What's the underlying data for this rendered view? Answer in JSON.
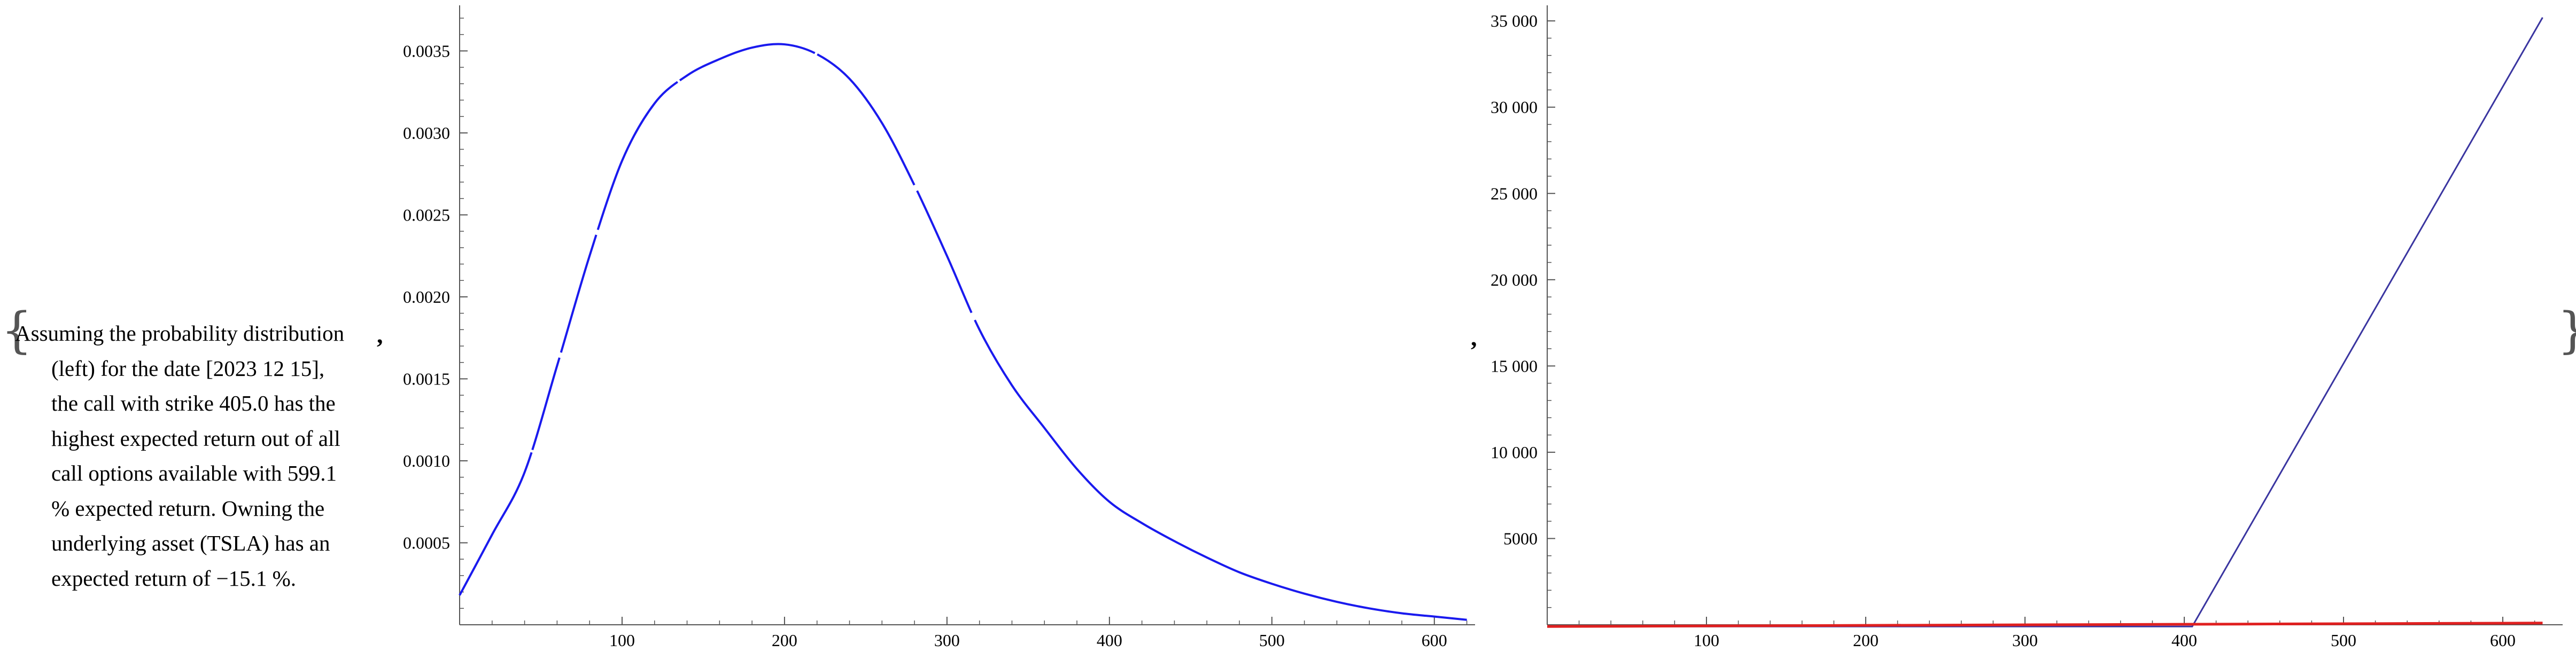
{
  "message_lines": [
    "Assuming the probability distribution",
    "(left) for the date [2023 12 15],",
    "the call with strike 405.0 has the",
    "highest expected return out of all",
    "call options available with 599.1",
    "% expected return. Owning the",
    "underlying asset (TSLA) has an",
    "expected return of −15.1 %."
  ],
  "colors": {
    "density": "#1a1aee",
    "call_payoff": "#3a35a0",
    "asset_payoff": "#e02020",
    "axis": "#555555"
  },
  "chart_data": [
    {
      "type": "line",
      "title": "",
      "xlabel": "",
      "ylabel": "",
      "xlim": [
        0,
        630
      ],
      "ylim": [
        0,
        0.00355
      ],
      "x_ticks": [
        100,
        200,
        300,
        400,
        500,
        600
      ],
      "x_tick_labels": [
        "100",
        "200",
        "300",
        "400",
        "500",
        "600"
      ],
      "y_ticks": [
        0.0005,
        0.001,
        0.0015,
        0.002,
        0.0025,
        0.003,
        0.0035
      ],
      "y_tick_labels": [
        "0.0005",
        "0.0010",
        "0.0015",
        "0.0020",
        "0.0025",
        "0.0030",
        "0.0035"
      ],
      "grid": false,
      "series": [
        {
          "x": [
            0,
            20,
            40,
            60,
            80,
            100,
            120,
            140,
            160,
            180,
            200,
            220,
            240,
            260,
            280,
            300,
            320,
            340,
            360,
            380,
            400,
            420,
            440,
            460,
            480,
            500,
            520,
            540,
            560,
            580,
            600,
            620
          ],
          "y": [
            0.00018,
            0.00055,
            0.00093,
            0.00158,
            0.00225,
            0.00283,
            0.00318,
            0.00335,
            0.00345,
            0.00352,
            0.00354,
            0.00348,
            0.00333,
            0.00306,
            0.00268,
            0.00225,
            0.0018,
            0.00146,
            0.0012,
            0.00095,
            0.00075,
            0.00062,
            0.00051,
            0.00041,
            0.00032,
            0.00025,
            0.00019,
            0.00014,
            0.0001,
            7e-05,
            5e-05,
            3e-05
          ]
        }
      ]
    },
    {
      "type": "line",
      "title": "",
      "xlabel": "",
      "ylabel": "",
      "xlim": [
        0,
        630
      ],
      "ylim": [
        0,
        35500
      ],
      "x_ticks": [
        100,
        200,
        300,
        400,
        500,
        600
      ],
      "x_tick_labels": [
        "100",
        "200",
        "300",
        "400",
        "500",
        "600"
      ],
      "y_ticks": [
        5000,
        10000,
        15000,
        20000,
        25000,
        30000,
        35000
      ],
      "y_tick_labels": [
        "5000",
        "10 000",
        "15 000",
        "20 000",
        "25 000",
        "30 000",
        "35 000"
      ],
      "grid": false,
      "series": [
        {
          "x": [
            0,
            405,
            625
          ],
          "y": [
            -100,
            -100,
            35200
          ]
        },
        {
          "x": [
            0,
            625
          ],
          "y": [
            -100,
            100
          ]
        }
      ]
    }
  ]
}
